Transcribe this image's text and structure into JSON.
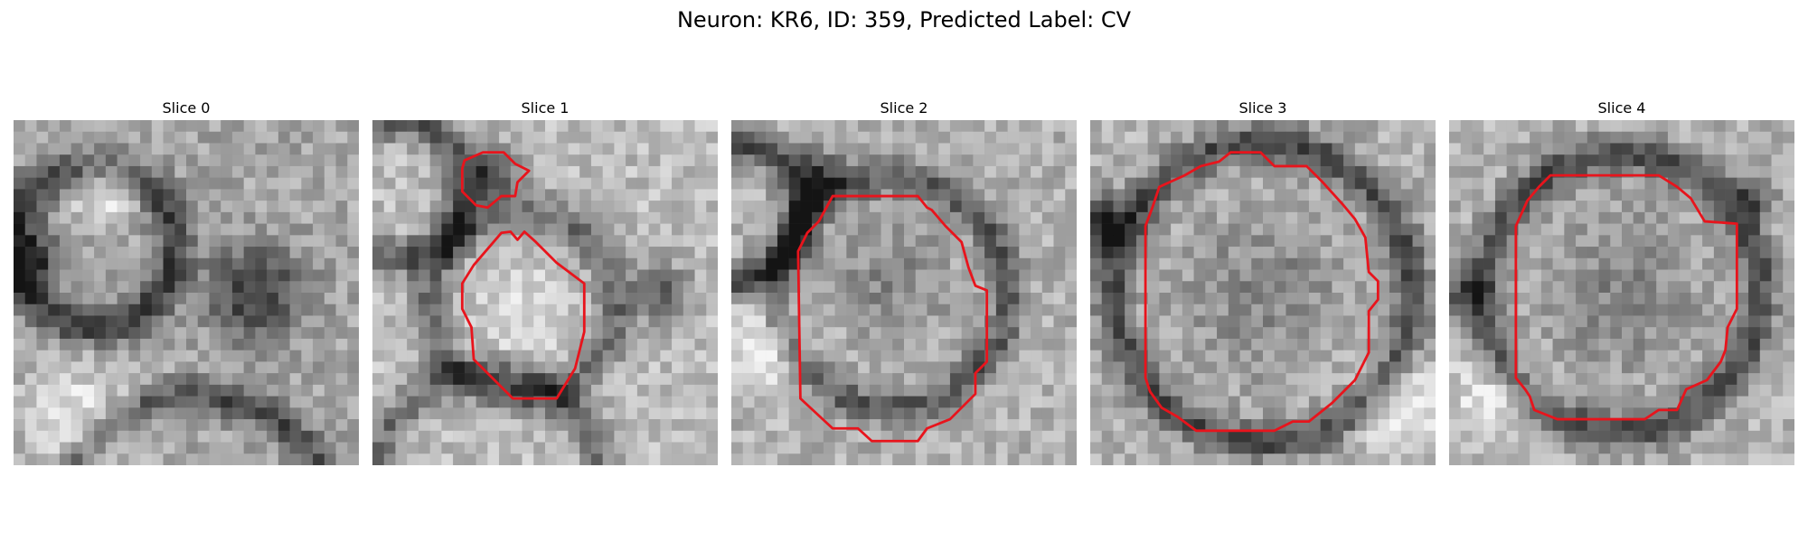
{
  "figure": {
    "title": "Neuron: KR6, ID: 359, Predicted Label: CV"
  },
  "panels": [
    {
      "title": "Slice 0",
      "has_contour": false
    },
    {
      "title": "Slice 1",
      "has_contour": true
    },
    {
      "title": "Slice 2",
      "has_contour": true
    },
    {
      "title": "Slice 3",
      "has_contour": true
    },
    {
      "title": "Slice 4",
      "has_contour": true
    }
  ],
  "colors": {
    "contour": "#e8141c",
    "background": "#ffffff"
  },
  "image_style": "grayscale pixelated microscopy slice with red segmentation outline"
}
